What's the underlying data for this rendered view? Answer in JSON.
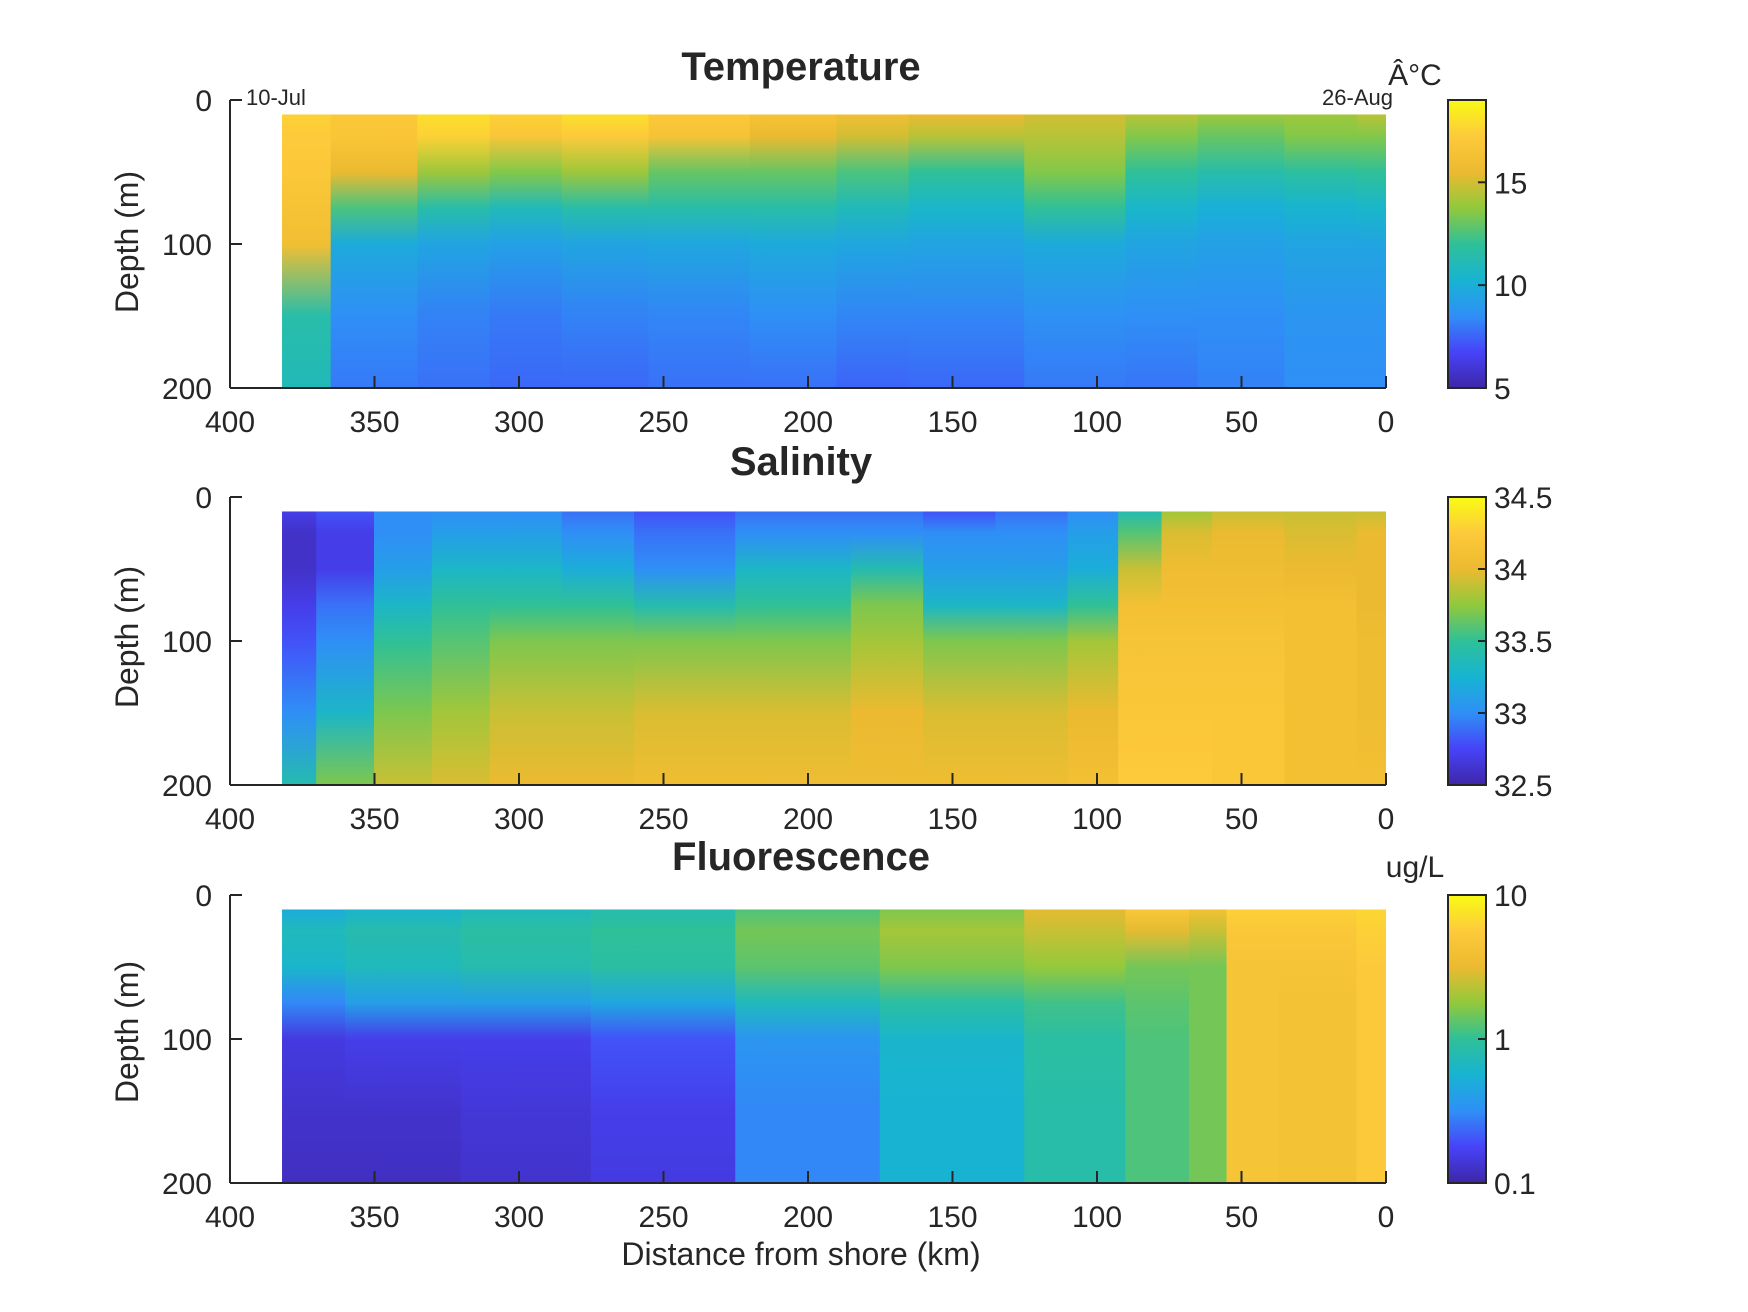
{
  "figure": {
    "xlabel": "Distance from shore (km)"
  },
  "palette": [
    "#3e26a8",
    "#4743f8",
    "#2f8ff6",
    "#17b4d2",
    "#2fc098",
    "#91c93c",
    "#ecba30",
    "#fdca3b",
    "#f9fb15"
  ],
  "chart_data": [
    {
      "type": "heatmap",
      "title": "Temperature",
      "xlabel": "",
      "ylabel": "Depth (m)",
      "xlim": [
        400,
        0
      ],
      "ylim": [
        0,
        200
      ],
      "x_reversed": true,
      "y_reversed": true,
      "xticks": [
        "400",
        "350",
        "300",
        "250",
        "200",
        "150",
        "100",
        "50",
        "0"
      ],
      "yticks": [
        "0",
        "100",
        "200"
      ],
      "data_extent": {
        "x": [
          382,
          0
        ],
        "y": [
          10,
          200
        ]
      },
      "annotations": {
        "left": "10-Jul",
        "right": "26-Aug"
      },
      "colorbar": {
        "label": "Â°C",
        "scale": "linear",
        "range": [
          5,
          19
        ],
        "ticks": [
          "5",
          "10",
          "15"
        ],
        "tick_values": [
          5,
          10,
          15
        ]
      },
      "x": [
        380,
        350,
        320,
        300,
        270,
        240,
        200,
        180,
        150,
        100,
        80,
        50,
        20,
        0
      ],
      "depth": [
        10,
        25,
        50,
        75,
        100,
        150,
        200
      ],
      "z": [
        [
          17.5,
          17.2,
          17.0,
          16.5,
          16.0,
          11.5,
          11.0
        ],
        [
          17.0,
          16.8,
          15.5,
          12.5,
          9.8,
          8.5,
          8.0
        ],
        [
          18.0,
          17.5,
          14.0,
          11.5,
          9.5,
          8.2,
          7.8
        ],
        [
          17.5,
          16.8,
          13.5,
          11.0,
          9.3,
          8.0,
          7.6
        ],
        [
          18.0,
          17.2,
          14.0,
          11.5,
          9.5,
          8.2,
          7.6
        ],
        [
          17.0,
          16.5,
          13.0,
          11.5,
          9.6,
          8.3,
          7.8
        ],
        [
          16.5,
          15.5,
          13.0,
          11.5,
          9.8,
          8.5,
          7.8
        ],
        [
          16.0,
          15.0,
          12.5,
          11.0,
          9.6,
          8.3,
          7.5
        ],
        [
          15.5,
          14.5,
          12.0,
          10.5,
          9.5,
          8.3,
          7.6
        ],
        [
          15.0,
          14.5,
          13.5,
          12.0,
          9.8,
          8.6,
          8.0
        ],
        [
          14.5,
          13.5,
          12.0,
          10.5,
          9.5,
          8.5,
          7.9
        ],
        [
          14.0,
          13.0,
          11.5,
          10.0,
          9.3,
          8.5,
          8.2
        ],
        [
          14.0,
          13.5,
          11.8,
          10.3,
          9.5,
          8.8,
          8.5
        ],
        [
          14.5,
          13.5,
          12.0,
          10.5,
          9.5,
          8.8,
          8.5
        ]
      ]
    },
    {
      "type": "heatmap",
      "title": "Salinity",
      "xlabel": "",
      "ylabel": "Depth (m)",
      "xlim": [
        400,
        0
      ],
      "ylim": [
        0,
        200
      ],
      "x_reversed": true,
      "y_reversed": true,
      "xticks": [
        "400",
        "350",
        "300",
        "250",
        "200",
        "150",
        "100",
        "50",
        "0"
      ],
      "yticks": [
        "0",
        "100",
        "200"
      ],
      "data_extent": {
        "x": [
          382,
          0
        ],
        "y": [
          10,
          200
        ]
      },
      "colorbar": {
        "label": "",
        "scale": "linear",
        "range": [
          32.5,
          34.5
        ],
        "ticks": [
          "32.5",
          "33",
          "33.5",
          "34",
          "34.5"
        ],
        "tick_values": [
          32.5,
          33,
          33.5,
          34,
          34.5
        ]
      },
      "x": [
        380,
        360,
        340,
        320,
        300,
        270,
        250,
        200,
        170,
        150,
        120,
        100,
        85,
        70,
        50,
        20,
        0
      ],
      "depth": [
        10,
        25,
        50,
        75,
        100,
        150,
        200
      ],
      "z": [
        [
          32.7,
          32.6,
          32.6,
          32.7,
          32.8,
          33.0,
          33.4
        ],
        [
          32.8,
          32.7,
          32.7,
          32.9,
          33.0,
          33.3,
          33.7
        ],
        [
          33.0,
          33.0,
          33.1,
          33.3,
          33.5,
          33.7,
          33.9
        ],
        [
          33.0,
          33.1,
          33.3,
          33.5,
          33.6,
          33.8,
          33.95
        ],
        [
          33.0,
          33.1,
          33.3,
          33.5,
          33.7,
          33.9,
          34.0
        ],
        [
          32.9,
          33.0,
          33.2,
          33.5,
          33.7,
          33.9,
          34.0
        ],
        [
          32.8,
          32.9,
          33.0,
          33.4,
          33.7,
          33.95,
          34.05
        ],
        [
          32.9,
          33.0,
          33.3,
          33.5,
          33.7,
          33.95,
          34.05
        ],
        [
          32.9,
          33.0,
          33.4,
          33.7,
          33.8,
          34.0,
          34.05
        ],
        [
          32.8,
          33.0,
          33.1,
          33.3,
          33.7,
          33.95,
          34.05
        ],
        [
          32.9,
          33.0,
          33.1,
          33.3,
          33.7,
          33.95,
          34.05
        ],
        [
          33.0,
          33.1,
          33.2,
          33.5,
          33.8,
          34.0,
          34.1
        ],
        [
          33.4,
          33.6,
          33.9,
          34.1,
          34.15,
          34.2,
          34.25
        ],
        [
          33.8,
          33.95,
          34.05,
          34.1,
          34.15,
          34.2,
          34.25
        ],
        [
          33.9,
          34.0,
          34.05,
          34.1,
          34.15,
          34.2,
          34.2
        ],
        [
          33.9,
          33.95,
          34.0,
          34.1,
          34.1,
          34.1,
          34.1
        ],
        [
          33.9,
          34.0,
          34.0,
          34.0,
          34.05,
          34.05,
          34.1
        ]
      ]
    },
    {
      "type": "heatmap",
      "title": "Fluorescence",
      "xlabel": "Distance from shore (km)",
      "ylabel": "Depth (m)",
      "xlim": [
        400,
        0
      ],
      "ylim": [
        0,
        200
      ],
      "x_reversed": true,
      "y_reversed": true,
      "xticks": [
        "400",
        "350",
        "300",
        "250",
        "200",
        "150",
        "100",
        "50",
        "0"
      ],
      "yticks": [
        "0",
        "100",
        "200"
      ],
      "data_extent": {
        "x": [
          382,
          0
        ],
        "y": [
          10,
          200
        ]
      },
      "colorbar": {
        "label": "ug/L",
        "scale": "log",
        "range": [
          0.1,
          10
        ],
        "ticks": [
          "0.1",
          "1",
          "10"
        ],
        "tick_values": [
          0.1,
          1,
          10
        ]
      },
      "x": [
        380,
        340,
        300,
        250,
        200,
        150,
        100,
        80,
        56,
        54,
        20,
        0
      ],
      "depth": [
        10,
        25,
        50,
        75,
        100,
        150,
        200
      ],
      "z": [
        [
          0.5,
          0.7,
          0.6,
          0.3,
          0.15,
          0.13,
          0.12
        ],
        [
          0.6,
          0.8,
          0.7,
          0.4,
          0.16,
          0.13,
          0.12
        ],
        [
          0.7,
          0.9,
          0.8,
          0.4,
          0.16,
          0.14,
          0.13
        ],
        [
          0.8,
          1.0,
          0.9,
          0.45,
          0.2,
          0.16,
          0.15
        ],
        [
          1.2,
          1.5,
          1.3,
          0.7,
          0.35,
          0.3,
          0.3
        ],
        [
          1.6,
          2.0,
          1.6,
          0.9,
          0.6,
          0.55,
          0.55
        ],
        [
          3.0,
          2.5,
          1.8,
          1.1,
          0.9,
          0.85,
          0.85
        ],
        [
          5.0,
          3.0,
          1.5,
          1.3,
          1.2,
          1.2,
          1.2
        ],
        [
          4.0,
          2.5,
          1.5,
          1.5,
          1.5,
          1.5,
          1.5
        ],
        [
          6.0,
          5.0,
          4.5,
          4.5,
          4.5,
          4.5,
          4.5
        ],
        [
          6.0,
          5.0,
          4.5,
          4.2,
          4.2,
          4.2,
          4.2
        ],
        [
          6.5,
          6.0,
          5.5,
          5.5,
          5.5,
          5.5,
          5.5
        ]
      ]
    }
  ]
}
